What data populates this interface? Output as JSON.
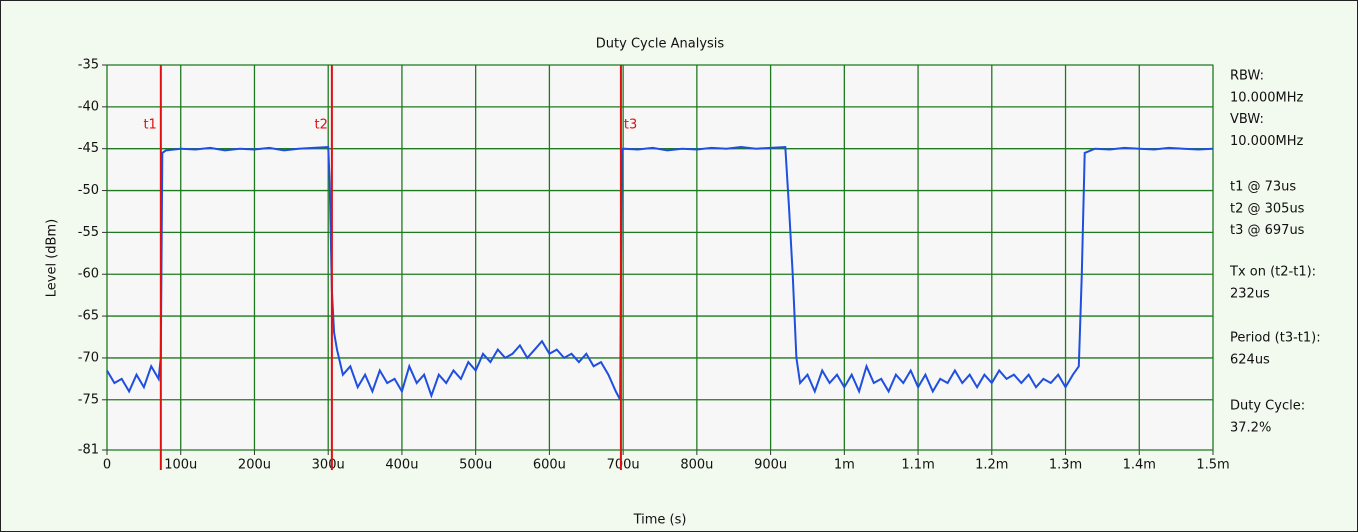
{
  "chart_data": {
    "type": "line",
    "title": "Duty Cycle Analysis",
    "xlabel": "Time (s)",
    "ylabel": "Level (dBm)",
    "xlim": [
      0,
      0.0015
    ],
    "ylim": [
      -81,
      -35
    ],
    "xticks": [
      0,
      {
        "value": 0.0001,
        "label": "100u"
      },
      {
        "value": 0.0002,
        "label": "200u"
      },
      {
        "value": 0.0003,
        "label": "300u"
      },
      {
        "value": 0.0004,
        "label": "400u"
      },
      {
        "value": 0.0005,
        "label": "500u"
      },
      {
        "value": 0.0006,
        "label": "600u"
      },
      {
        "value": 0.0007,
        "label": "700u"
      },
      {
        "value": 0.0008,
        "label": "800u"
      },
      {
        "value": 0.0009,
        "label": "900u"
      },
      {
        "value": 0.001,
        "label": "1m"
      },
      {
        "value": 0.0011,
        "label": "1.1m"
      },
      {
        "value": 0.0012,
        "label": "1.2m"
      },
      {
        "value": 0.0013,
        "label": "1.3m"
      },
      {
        "value": 0.0014,
        "label": "1.4m"
      },
      {
        "value": 0.0015,
        "label": "1.5m"
      }
    ],
    "yticks": [
      -35,
      -40,
      -45,
      -50,
      -55,
      -60,
      -65,
      -70,
      -75,
      -81
    ],
    "grid": true,
    "grid_color": "#1e7a1e",
    "x": [
      0,
      1e-05,
      2e-05,
      3e-05,
      4e-05,
      5e-05,
      6e-05,
      7e-05,
      7.3e-05,
      7.5e-05,
      8e-05,
      0.0001,
      0.00012,
      0.00014,
      0.00016,
      0.00018,
      0.0002,
      0.00022,
      0.00024,
      0.00026,
      0.00028,
      0.0003,
      0.000302,
      0.000305,
      0.000308,
      0.000312,
      0.00032,
      0.00033,
      0.00034,
      0.00035,
      0.00036,
      0.00037,
      0.00038,
      0.00039,
      0.0004,
      0.00041,
      0.00042,
      0.00043,
      0.00044,
      0.00045,
      0.00046,
      0.00047,
      0.00048,
      0.00049,
      0.0005,
      0.00051,
      0.00052,
      0.00053,
      0.00054,
      0.00055,
      0.00056,
      0.00057,
      0.00058,
      0.00059,
      0.0006,
      0.00061,
      0.00062,
      0.00063,
      0.00064,
      0.00065,
      0.00066,
      0.00067,
      0.00068,
      0.00069,
      0.000696,
      0.000698,
      0.0007,
      0.00072,
      0.00074,
      0.00076,
      0.00078,
      0.0008,
      0.00082,
      0.00084,
      0.00086,
      0.00088,
      0.0009,
      0.00092,
      0.000925,
      0.00093,
      0.000935,
      0.00094,
      0.00095,
      0.00096,
      0.00097,
      0.00098,
      0.00099,
      0.001,
      0.00101,
      0.00102,
      0.00103,
      0.00104,
      0.00105,
      0.00106,
      0.00107,
      0.00108,
      0.00109,
      0.0011,
      0.00111,
      0.00112,
      0.00113,
      0.00114,
      0.00115,
      0.00116,
      0.00117,
      0.00118,
      0.00119,
      0.0012,
      0.00121,
      0.00122,
      0.00123,
      0.00124,
      0.00125,
      0.00126,
      0.00127,
      0.00128,
      0.00129,
      0.0013,
      0.00131,
      0.001318,
      0.001322,
      0.001326,
      0.00134,
      0.00136,
      0.00138,
      0.0014,
      0.00142,
      0.00144,
      0.00146,
      0.00148,
      0.0015
    ],
    "series": [
      {
        "color": "#1f4fe0",
        "values": [
          -71.5,
          -73,
          -72.5,
          -74,
          -72,
          -73.5,
          -71,
          -72.5,
          -70,
          -45.5,
          -45.2,
          -45,
          -45.1,
          -44.9,
          -45.2,
          -45,
          -45.1,
          -44.9,
          -45.2,
          -45,
          -44.9,
          -44.8,
          -49,
          -62,
          -67,
          -69,
          -72,
          -71,
          -73.5,
          -72,
          -74,
          -71.5,
          -73,
          -72.5,
          -74,
          -71,
          -73,
          -72,
          -74.5,
          -72,
          -73,
          -71.5,
          -72.5,
          -70.5,
          -71.5,
          -69.5,
          -70.5,
          -69,
          -70,
          -69.5,
          -68.5,
          -70,
          -69,
          -68,
          -69.5,
          -69,
          -70,
          -69.5,
          -70.5,
          -69.5,
          -71,
          -70.5,
          -72,
          -74,
          -75,
          -45.5,
          -45,
          -45.1,
          -44.9,
          -45.2,
          -45,
          -45.1,
          -44.9,
          -45,
          -44.8,
          -45,
          -44.9,
          -44.8,
          -52,
          -60,
          -70,
          -73,
          -72,
          -74,
          -71.5,
          -73,
          -72,
          -73.5,
          -72,
          -74,
          -71,
          -73,
          -72.5,
          -74,
          -72,
          -73,
          -71.5,
          -73.5,
          -72,
          -74,
          -72.5,
          -73,
          -71.5,
          -73,
          -72,
          -73.5,
          -72,
          -73,
          -71.5,
          -72.5,
          -72,
          -73,
          -72,
          -73.5,
          -72.5,
          -73,
          -72,
          -73.5,
          -72,
          -71,
          -60,
          -45.5,
          -45,
          -45.1,
          -44.9,
          -45,
          -45.1,
          -44.9,
          -45,
          -45.1,
          -45
        ]
      }
    ],
    "cursors": [
      {
        "label": "t1",
        "x": 7.3e-05,
        "color": "#e01010"
      },
      {
        "label": "t2",
        "x": 0.000305,
        "color": "#e01010"
      },
      {
        "label": "t3",
        "x": 0.000697,
        "color": "#e01010"
      }
    ],
    "side_panel": [
      [
        "RBW:",
        "10.000MHz",
        "VBW:",
        "10.000MHz"
      ],
      [
        "t1 @ 73us",
        "t2 @ 305us",
        "t3 @ 697us"
      ],
      [
        "Tx on (t2-t1):",
        "232us"
      ],
      [
        "Period (t3-t1):",
        "624us"
      ],
      [
        "Duty Cycle:",
        "37.2%"
      ]
    ]
  }
}
